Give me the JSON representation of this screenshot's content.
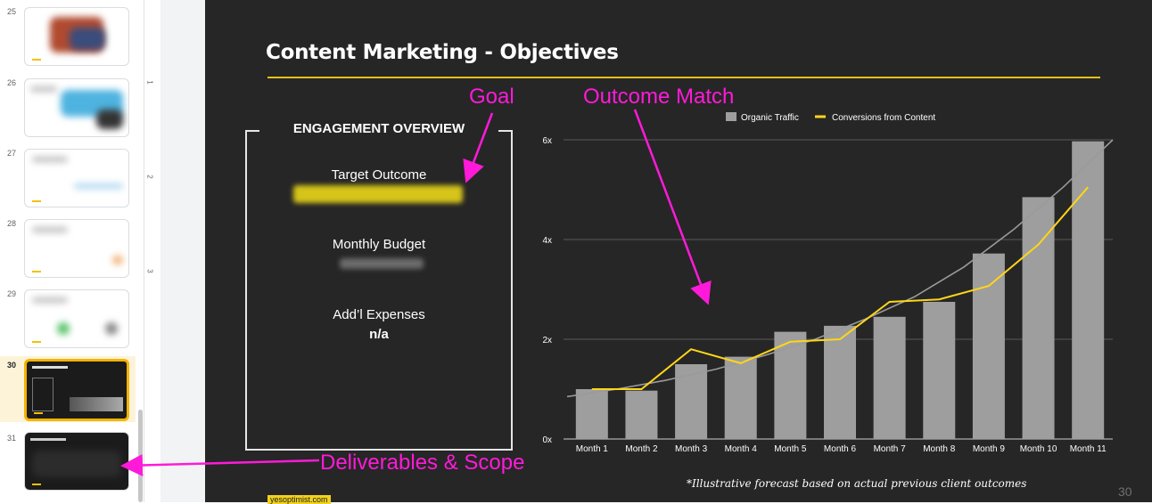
{
  "sidebar": {
    "slides": [
      {
        "num": "25"
      },
      {
        "num": "26"
      },
      {
        "num": "27"
      },
      {
        "num": "28"
      },
      {
        "num": "29"
      },
      {
        "num": "30"
      },
      {
        "num": "31"
      }
    ],
    "ruler_numbers": [
      "1",
      "2",
      "3"
    ]
  },
  "slide": {
    "title": "Content Marketing - Objectives",
    "engagement": {
      "heading": "ENGAGEMENT OVERVIEW",
      "target_label": "Target Outcome",
      "budget_label": "Monthly Budget",
      "expenses_label": "Add’l Expenses",
      "expenses_value": "n/a"
    },
    "footnote": "*Illustrative forecast based on actual previous client outcomes",
    "page_number": "30",
    "site": "yesoptimist.com",
    "colors": {
      "accent": "#e3c21a",
      "bar": "#9e9e9e",
      "background": "#262626"
    }
  },
  "chart_data": {
    "type": "bar",
    "categories": [
      "Month 1",
      "Month 2",
      "Month 3",
      "Month 4",
      "Month 5",
      "Month 6",
      "Month 7",
      "Month 8",
      "Month 9",
      "Month 10",
      "Month 11"
    ],
    "y_ticks": [
      "0x",
      "2x",
      "4x",
      "6x"
    ],
    "ylim": [
      0,
      6
    ],
    "legend_position": "top-center",
    "grid": true,
    "series": [
      {
        "name": "Organic Traffic",
        "type": "bar",
        "color": "#9e9e9e",
        "values": [
          1.0,
          0.97,
          1.5,
          1.65,
          2.15,
          2.27,
          2.45,
          2.75,
          3.72,
          4.85,
          5.97
        ]
      },
      {
        "name": "Conversions from Content",
        "type": "line",
        "color": "#ffd51a",
        "values": [
          1.0,
          1.0,
          1.8,
          1.52,
          1.95,
          2.0,
          2.75,
          2.8,
          3.07,
          3.9,
          5.05
        ]
      }
    ],
    "trendline": {
      "color": "#9a9a9a",
      "values": [
        0.85,
        1.0,
        1.18,
        1.4,
        1.68,
        2.0,
        2.4,
        2.85,
        3.45,
        4.2,
        5.05,
        6.0
      ]
    }
  },
  "annotations": {
    "goal": "Goal",
    "outcome": "Outcome Match",
    "deliverables": "Deliverables & Scope",
    "color": "#ff1ad9"
  }
}
